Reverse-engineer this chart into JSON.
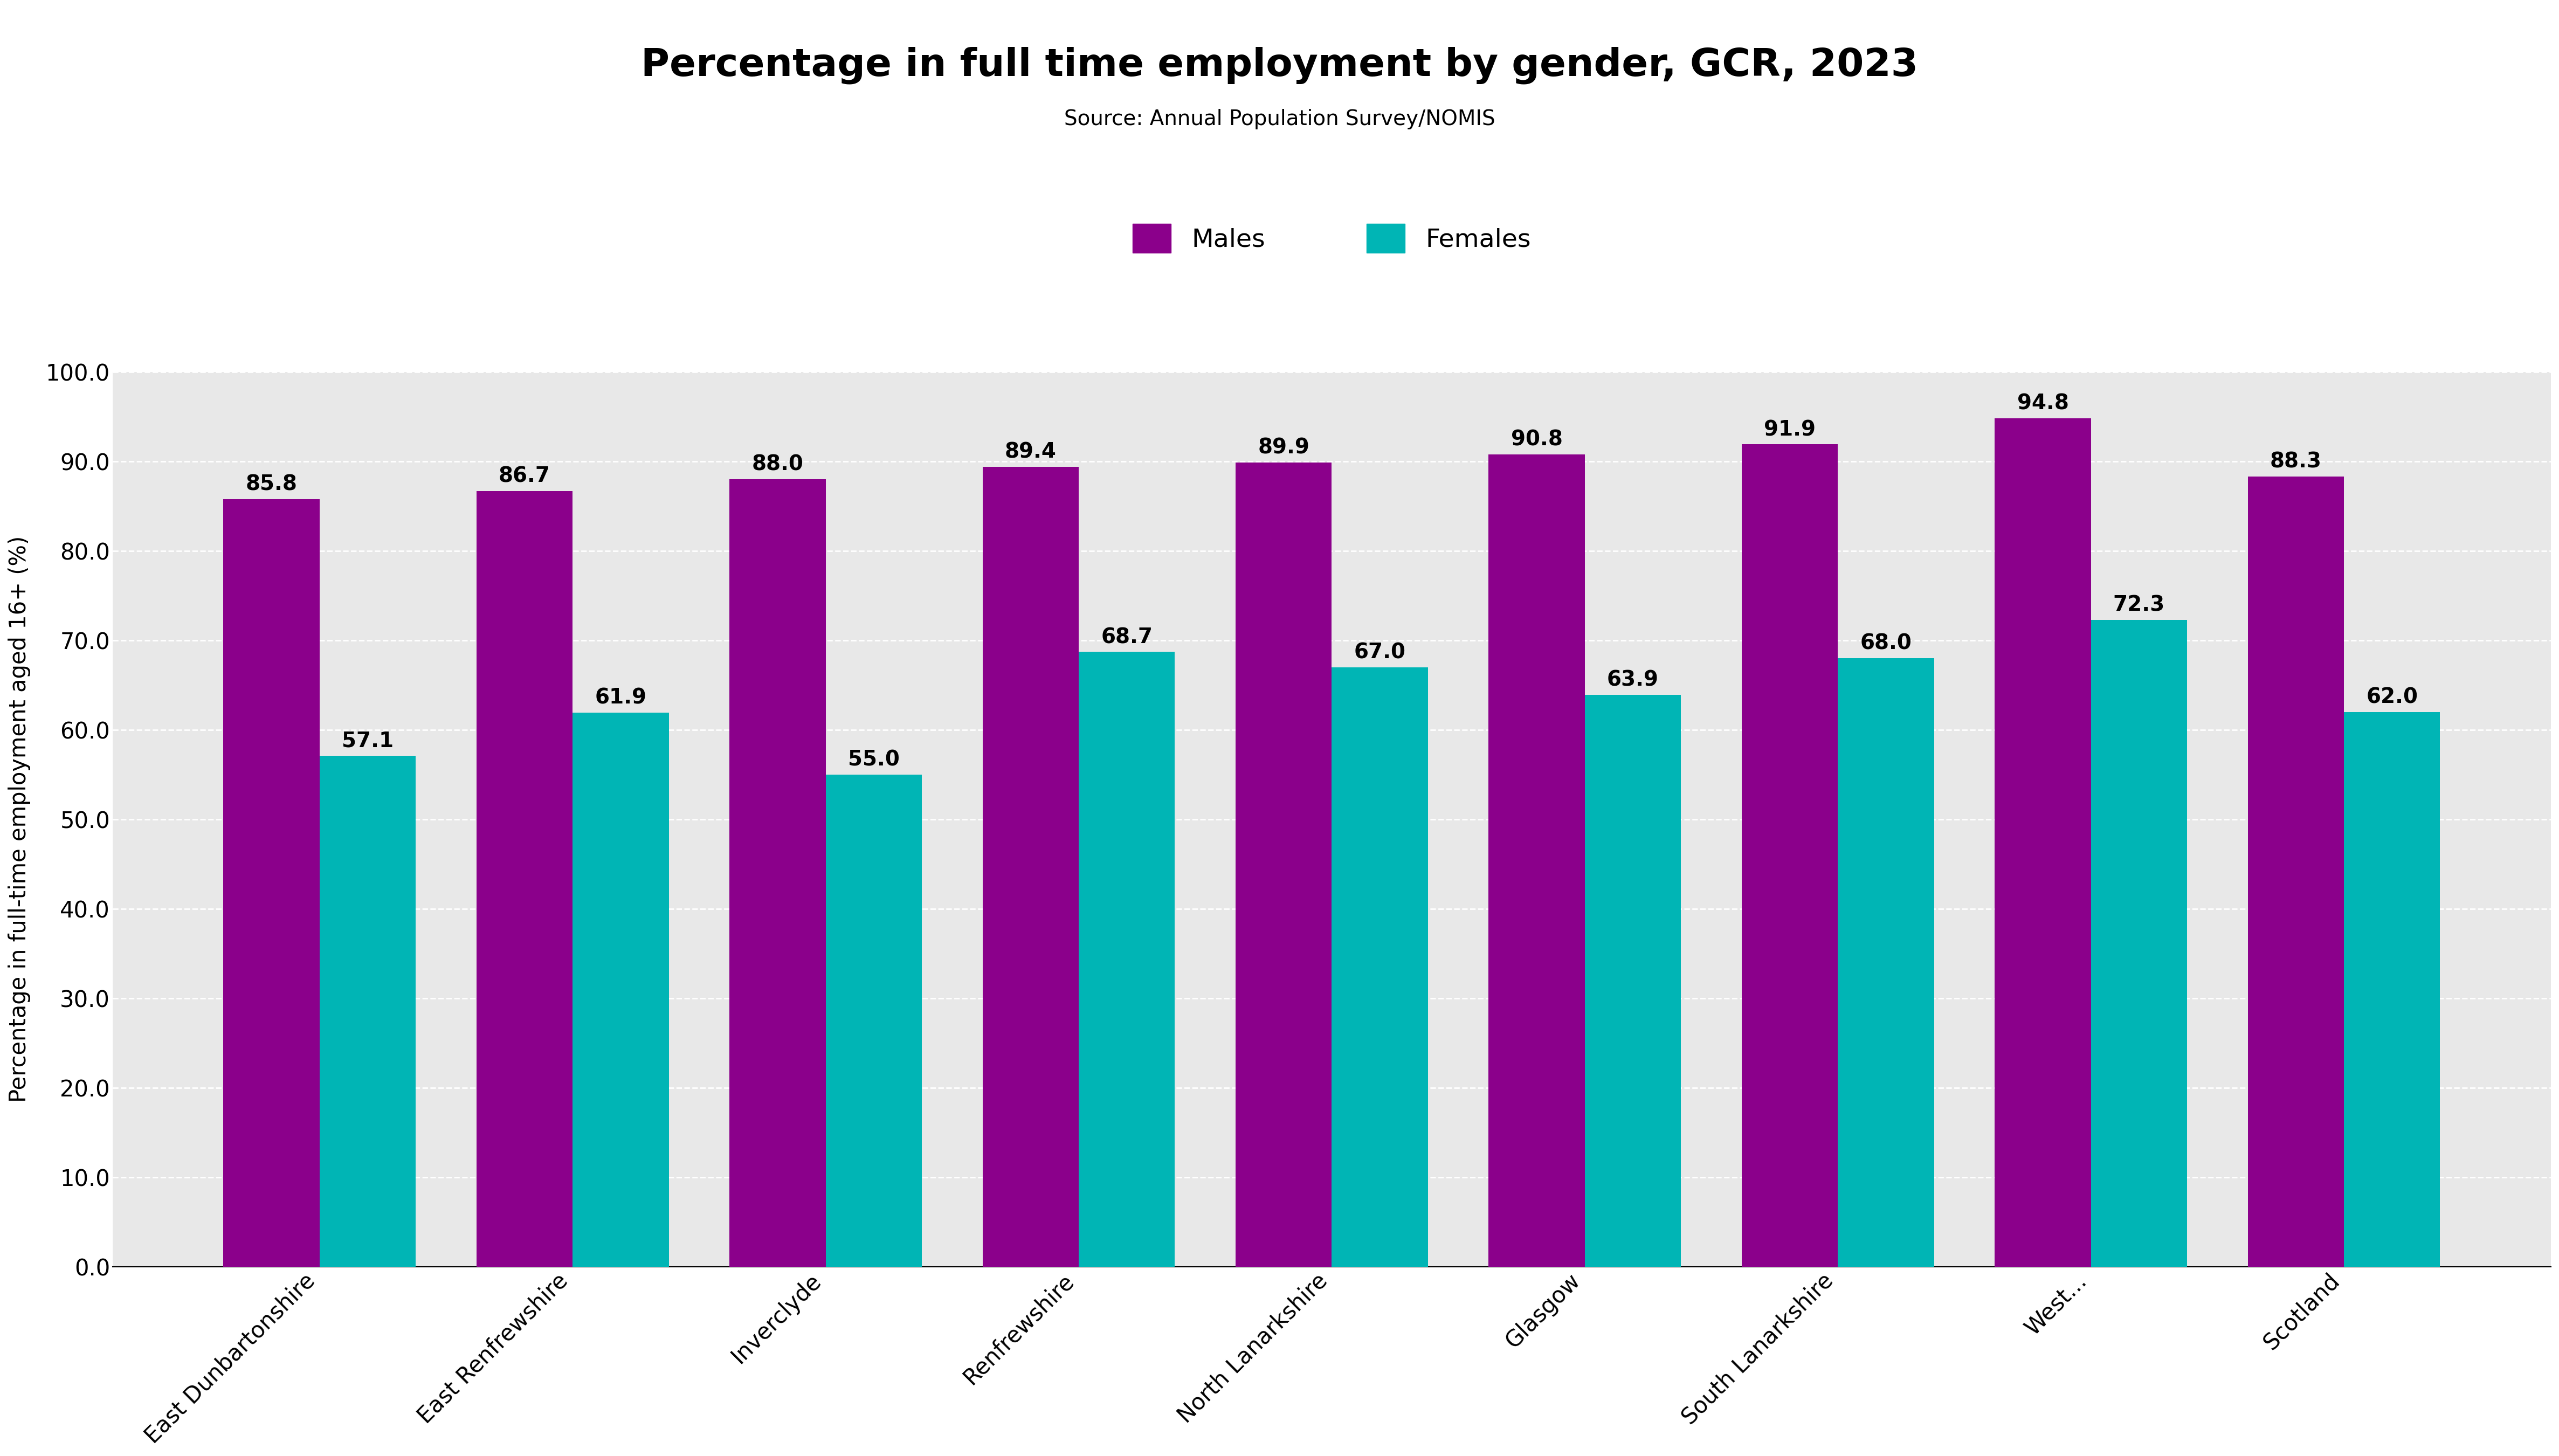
{
  "title": "Percentage in full time employment by gender, GCR, 2023",
  "subtitle": "Source: Annual Population Survey/NOMIS",
  "categories": [
    "East Dunbartonshire",
    "East Renfrewshire",
    "Inverclyde",
    "Renfrewshire",
    "North Lanarkshire",
    "Glasgow",
    "South Lanarkshire",
    "West...",
    "Scotland"
  ],
  "males": [
    85.8,
    86.7,
    88.0,
    89.4,
    89.9,
    90.8,
    91.9,
    94.8,
    88.3
  ],
  "females": [
    57.1,
    61.9,
    55.0,
    68.7,
    67.0,
    63.9,
    68.0,
    72.3,
    62.0
  ],
  "male_color": "#8B008B",
  "female_color": "#00B5B5",
  "ylabel": "Percentage in full-time employment aged 16+ (%)",
  "ylim": [
    0,
    100
  ],
  "yticks": [
    0.0,
    10.0,
    20.0,
    30.0,
    40.0,
    50.0,
    60.0,
    70.0,
    80.0,
    90.0,
    100.0
  ],
  "plot_background": "#e8e8e8",
  "bar_width": 0.38,
  "title_fontsize": 52,
  "subtitle_fontsize": 28,
  "label_fontsize": 30,
  "tick_fontsize": 30,
  "legend_fontsize": 34,
  "value_fontsize": 28,
  "ylabel_fontsize": 30
}
